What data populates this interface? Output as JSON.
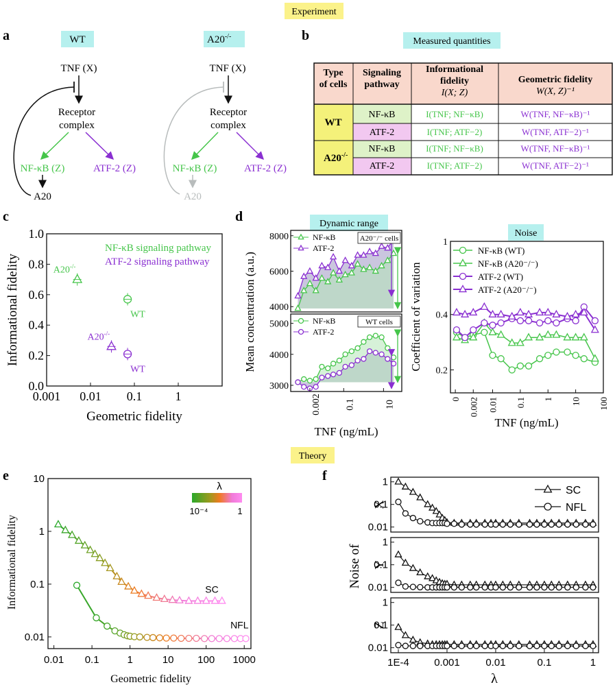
{
  "colors": {
    "green": "#45c54a",
    "purple": "#8a2fd1",
    "black": "#111111",
    "grey": "#b8bcbc",
    "yellowBadge": "#fbf28a",
    "cyanBadge": "#b6f0ee",
    "header": "#f9d8cc",
    "wtCell": "#f4f17a",
    "nfCell": "#def2c8",
    "atfCell": "#f2c8f0"
  },
  "badges": {
    "experiment": "Experiment",
    "theory": "Theory",
    "wt": "WT",
    "a20": "A20",
    "a20sup": "-/-",
    "measured": "Measured quantities",
    "dynamic": "Dynamic range",
    "noise": "Noise"
  },
  "panels": {
    "a": "a",
    "b": "b",
    "c": "c",
    "d": "d",
    "e": "e",
    "f": "f"
  },
  "diagram": {
    "tnf": "TNF (X)",
    "receptor1": "Receptor",
    "receptor2": "complex",
    "nfkb": "NF-κB (Z)",
    "atf2": "ATF-2 (Z)",
    "a20": "A20"
  },
  "table": {
    "headers": [
      [
        "Type",
        "of cells"
      ],
      [
        "Signaling",
        "pathway"
      ],
      [
        "Informational",
        "fidelity",
        "I(X; Z)"
      ],
      [
        "Geometric fidelity",
        "W(X, Z)⁻¹"
      ]
    ],
    "cells": [
      "WT",
      "A20"
    ],
    "rows": [
      {
        "path": "NF-κB",
        "info": "I(TNF; NF−κB)",
        "geo": "W(TNF, NF−κB)⁻¹"
      },
      {
        "path": "ATF-2",
        "info": "I(TNF; ATF−2)",
        "geo": "W(TNF, ATF−2)⁻¹"
      },
      {
        "path": "NF-κB",
        "info": "I(TNF; NF−κB)",
        "geo": "W(TNF, NF−κB)⁻¹"
      },
      {
        "path": "ATF-2",
        "info": "I(TNF; ATF−2)",
        "geo": "W(TNF, ATF−2)⁻¹"
      }
    ]
  },
  "chart_data": [
    {
      "id": "c",
      "type": "scatter",
      "xscale": "log",
      "xlim": [
        0.001,
        10
      ],
      "ylim": [
        0,
        1
      ],
      "xlabel": "Geometric fidelity",
      "ylabel": "Informational fidelity",
      "xticks": [
        "0.001",
        "0.01",
        "0.1",
        "1"
      ],
      "yticks": [
        "0.0",
        "0.2",
        "0.4",
        "0.6",
        "0.8",
        "1.0"
      ],
      "legend": [
        "NF-κB signaling pathway",
        "ATF-2 signaling pathway"
      ],
      "points": [
        {
          "x": 0.005,
          "y": 0.7,
          "series": "NF-κB",
          "label": "A20",
          "marker": "triangle"
        },
        {
          "x": 0.07,
          "y": 0.57,
          "series": "NF-κB",
          "label": "WT",
          "marker": "circle"
        },
        {
          "x": 0.03,
          "y": 0.26,
          "series": "ATF-2",
          "label": "A20",
          "marker": "triangle"
        },
        {
          "x": 0.07,
          "y": 0.21,
          "series": "ATF-2",
          "label": "WT",
          "marker": "circle"
        }
      ]
    },
    {
      "id": "d_top",
      "type": "line",
      "xscale": "log",
      "title": "A20⁻/⁻ cells",
      "ylim": [
        3700,
        8300
      ],
      "yticks": [
        "4000",
        "6000",
        "8000"
      ],
      "legend": [
        "NF-κB",
        "ATF-2"
      ],
      "x": [
        0.0005,
        0.001,
        0.002,
        0.004,
        0.008,
        0.016,
        0.03,
        0.06,
        0.12,
        0.25,
        0.5,
        1,
        2,
        4,
        8,
        16,
        32
      ],
      "series": [
        {
          "name": "NF-κB",
          "values": [
            3900,
            4900,
            5300,
            4900,
            5600,
            5400,
            5900,
            5500,
            5800,
            5900,
            6400,
            6100,
            6200,
            6000,
            6300,
            6600,
            7000
          ]
        },
        {
          "name": "ATF-2",
          "values": [
            4600,
            5700,
            6000,
            5600,
            6300,
            6200,
            6800,
            6000,
            6600,
            6300,
            6900,
            6900,
            7100,
            7000,
            7400,
            7300,
            7800
          ]
        }
      ]
    },
    {
      "id": "d_bottom",
      "type": "line",
      "xscale": "log",
      "title": "WT cells",
      "ylim": [
        2800,
        5300
      ],
      "yticks": [
        "3000",
        "4000",
        "5000"
      ],
      "xticks": [
        "0.002",
        "0.1",
        "10"
      ],
      "xlabel": "TNF (ng/mL)",
      "ylabel": "Mean concentration (a.u.)",
      "legend": [
        "NF-κB",
        "ATF-2"
      ],
      "x": [
        0.0005,
        0.001,
        0.002,
        0.004,
        0.008,
        0.016,
        0.03,
        0.06,
        0.12,
        0.25,
        0.5,
        1,
        2,
        4,
        8,
        16,
        32
      ],
      "series": [
        {
          "name": "NF-κB",
          "values": [
            3100,
            3200,
            3150,
            3200,
            3600,
            3550,
            3700,
            3800,
            4000,
            4100,
            4200,
            4400,
            4550,
            4600,
            4550,
            4200,
            3900
          ]
        },
        {
          "name": "ATF-2",
          "values": [
            3100,
            2950,
            2900,
            2950,
            3250,
            3300,
            3350,
            3400,
            3600,
            3650,
            3800,
            3850,
            4100,
            4050,
            4000,
            3850,
            3700
          ]
        }
      ]
    },
    {
      "id": "d_noise",
      "type": "line",
      "xscale": "log",
      "yscale": "log",
      "ylim": [
        0.15,
        1
      ],
      "xlabel": "TNF (ng/mL)",
      "ylabel": "Coefficient of variation",
      "xticks": [
        "0",
        "0.002",
        "0.01",
        "0.1",
        "1",
        "10",
        "100"
      ],
      "yticks": [
        "1",
        "0.4",
        "0.2"
      ],
      "legend": [
        "NF-κB (WT)",
        "NF-κB (A20⁻/⁻)",
        "ATF-2 (WT)",
        "ATF-2 (A20⁻/⁻)"
      ],
      "x": [
        0.0005,
        0.001,
        0.002,
        0.005,
        0.01,
        0.02,
        0.05,
        0.1,
        0.2,
        0.5,
        1,
        2,
        5,
        10,
        20,
        50
      ],
      "series": [
        {
          "name": "NF-κB (WT)",
          "values": [
            0.32,
            0.3,
            0.31,
            0.32,
            0.24,
            0.23,
            0.2,
            0.21,
            0.21,
            0.23,
            0.24,
            0.25,
            0.25,
            0.24,
            0.23,
            0.22
          ]
        },
        {
          "name": "NF-κB (A20⁻/⁻)",
          "values": [
            0.3,
            0.29,
            0.3,
            0.36,
            0.32,
            0.31,
            0.28,
            0.28,
            0.3,
            0.3,
            0.31,
            0.31,
            0.3,
            0.3,
            0.3,
            0.23
          ]
        },
        {
          "name": "ATF-2 (WT)",
          "values": [
            0.33,
            0.3,
            0.33,
            0.36,
            0.35,
            0.36,
            0.38,
            0.37,
            0.37,
            0.36,
            0.37,
            0.36,
            0.38,
            0.37,
            0.44,
            0.37
          ]
        },
        {
          "name": "ATF-2 (A20⁻/⁻)",
          "values": [
            0.41,
            0.4,
            0.41,
            0.44,
            0.4,
            0.4,
            0.39,
            0.41,
            0.4,
            0.41,
            0.41,
            0.4,
            0.39,
            0.4,
            0.41,
            0.33
          ]
        }
      ]
    },
    {
      "id": "e",
      "type": "line",
      "xscale": "log",
      "yscale": "log",
      "xlim": [
        0.01,
        1000
      ],
      "ylim": [
        0.005,
        10
      ],
      "xlabel": "Geometric fidelity",
      "ylabel": "Informational fidelity",
      "colorbar": {
        "title": "λ",
        "min": "10⁻⁴",
        "max": "1"
      },
      "xticks": [
        "0.01",
        "0.1",
        "1",
        "10",
        "100",
        "1000"
      ],
      "yticks": [
        "10",
        "1",
        "0.1",
        "0.01"
      ],
      "series": [
        {
          "name": "SC",
          "x": [
            0.013,
            0.02,
            0.03,
            0.045,
            0.065,
            0.09,
            0.12,
            0.16,
            0.22,
            0.3,
            0.45,
            0.6,
            0.9,
            1.3,
            2,
            3,
            5,
            8,
            13,
            20,
            35,
            60,
            100,
            170,
            260
          ],
          "values": [
            1.35,
            1.05,
            0.85,
            0.66,
            0.54,
            0.44,
            0.37,
            0.31,
            0.25,
            0.2,
            0.14,
            0.11,
            0.09,
            0.075,
            0.065,
            0.06,
            0.055,
            0.052,
            0.05,
            0.049,
            0.048,
            0.048,
            0.048,
            0.048,
            0.048
          ]
        },
        {
          "name": "NFL",
          "x": [
            0.04,
            0.13,
            0.25,
            0.4,
            0.55,
            0.7,
            0.85,
            1,
            1.3,
            1.8,
            2.8,
            4,
            6,
            9,
            14,
            22,
            35,
            55,
            90,
            140,
            220,
            350,
            550,
            800,
            1100
          ],
          "values": [
            0.095,
            0.023,
            0.016,
            0.013,
            0.0118,
            0.011,
            0.0105,
            0.0103,
            0.0101,
            0.01,
            0.0098,
            0.0097,
            0.0096,
            0.0095,
            0.0095,
            0.0094,
            0.0094,
            0.0094,
            0.0093,
            0.0093,
            0.0093,
            0.0093,
            0.0093,
            0.0093,
            0.0093
          ]
        }
      ]
    },
    {
      "id": "f",
      "type": "line",
      "xscale": "log",
      "yscale": "log",
      "xlim": [
        0.0001,
        1
      ],
      "ylim": [
        0.005,
        1.5
      ],
      "xlabel": "λ",
      "ylabel": "Noise of",
      "xticks": [
        "1E-4",
        "0.001",
        "0.01",
        "0.1",
        "1"
      ],
      "yticks": [
        "1",
        "0.1",
        "0.01"
      ],
      "legend": [
        "SC",
        "NFL"
      ],
      "subplots": [
        "X",
        "Y",
        "Z"
      ],
      "x": [
        0.0001,
        0.00014,
        0.0002,
        0.00028,
        0.0004,
        0.0005,
        0.0006,
        0.0007,
        0.0008,
        0.0009,
        0.001,
        0.0014,
        0.002,
        0.003,
        0.004,
        0.006,
        0.008,
        0.01,
        0.014,
        0.02,
        0.03,
        0.05,
        0.07,
        0.1,
        0.14,
        0.2,
        0.3,
        0.45,
        0.7,
        1
      ],
      "series": {
        "X": {
          "SC": [
            1.0,
            0.6,
            0.35,
            0.2,
            0.1,
            0.07,
            0.05,
            0.035,
            0.025,
            0.02,
            0.016,
            0.015,
            0.015,
            0.015,
            0.015,
            0.015,
            0.015,
            0.015,
            0.015,
            0.015,
            0.015,
            0.015,
            0.015,
            0.015,
            0.015,
            0.015,
            0.015,
            0.015,
            0.015,
            0.015
          ],
          "NFL": [
            0.13,
            0.04,
            0.025,
            0.018,
            0.016,
            0.015,
            0.015,
            0.015,
            0.015,
            0.015,
            0.014,
            0.014,
            0.013,
            0.013,
            0.013,
            0.013,
            0.013,
            0.013,
            0.013,
            0.013,
            0.013,
            0.013,
            0.013,
            0.013,
            0.013,
            0.013,
            0.013,
            0.013,
            0.013,
            0.013
          ]
        },
        "Y": {
          "SC": [
            0.28,
            0.12,
            0.07,
            0.045,
            0.03,
            0.025,
            0.02,
            0.017,
            0.015,
            0.014,
            0.014,
            0.013,
            0.013,
            0.013,
            0.013,
            0.013,
            0.013,
            0.013,
            0.013,
            0.013,
            0.013,
            0.013,
            0.013,
            0.013,
            0.013,
            0.013,
            0.013,
            0.013,
            0.013,
            0.013
          ],
          "NFL": [
            0.016,
            0.011,
            0.0105,
            0.0102,
            0.01,
            0.01,
            0.01,
            0.01,
            0.01,
            0.01,
            0.01,
            0.01,
            0.01,
            0.01,
            0.01,
            0.01,
            0.01,
            0.01,
            0.01,
            0.01,
            0.01,
            0.01,
            0.01,
            0.01,
            0.01,
            0.01,
            0.01,
            0.01,
            0.01,
            0.01
          ]
        },
        "Z": {
          "SC": [
            0.08,
            0.035,
            0.022,
            0.017,
            0.015,
            0.014,
            0.014,
            0.014,
            0.014,
            0.014,
            0.014,
            0.014,
            0.014,
            0.014,
            0.014,
            0.014,
            0.014,
            0.014,
            0.014,
            0.014,
            0.014,
            0.014,
            0.014,
            0.014,
            0.014,
            0.014,
            0.014,
            0.014,
            0.014,
            0.014
          ],
          "NFL": [
            0.013,
            0.012,
            0.012,
            0.012,
            0.012,
            0.012,
            0.012,
            0.012,
            0.012,
            0.012,
            0.012,
            0.012,
            0.012,
            0.012,
            0.012,
            0.012,
            0.012,
            0.012,
            0.012,
            0.012,
            0.012,
            0.012,
            0.012,
            0.012,
            0.012,
            0.012,
            0.012,
            0.012,
            0.012,
            0.012
          ]
        }
      }
    }
  ]
}
